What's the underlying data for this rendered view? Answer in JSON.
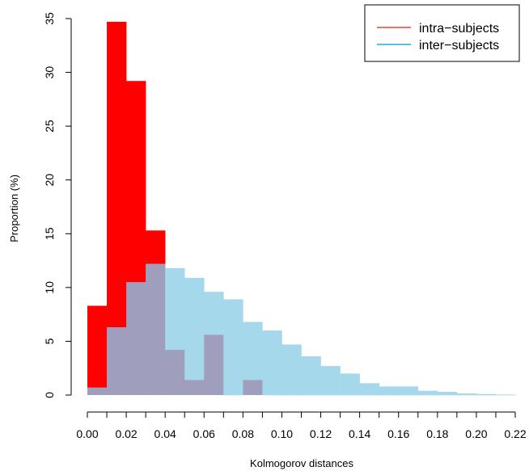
{
  "chart_data": {
    "type": "histogram",
    "xlabel": "Kolmogorov distances",
    "ylabel": "Proportion (%)",
    "xlim": [
      0.0,
      0.22
    ],
    "ylim": [
      0,
      35
    ],
    "grid": false,
    "legend_position": "top-right",
    "bin_edges": [
      0.0,
      0.01,
      0.02,
      0.03,
      0.04,
      0.05,
      0.06,
      0.07,
      0.08,
      0.09,
      0.1,
      0.11,
      0.12,
      0.13,
      0.14,
      0.15,
      0.16,
      0.17,
      0.18,
      0.19,
      0.2,
      0.21,
      0.22
    ],
    "x_ticks": [
      "0.00",
      "0.02",
      "0.04",
      "0.06",
      "0.08",
      "0.10",
      "0.12",
      "0.14",
      "0.16",
      "0.18",
      "0.20",
      "0.22"
    ],
    "y_ticks": [
      "0",
      "5",
      "10",
      "15",
      "20",
      "25",
      "30",
      "35"
    ],
    "overlap_color": "#9f9fbd",
    "series": [
      {
        "name": "intra−subjects",
        "color": "#ff0000",
        "legend_line_color": "#ff6b6b",
        "values": [
          8.3,
          34.7,
          29.2,
          15.3,
          4.2,
          1.4,
          5.6,
          0.0,
          1.4,
          0,
          0,
          0,
          0,
          0,
          0,
          0,
          0,
          0,
          0,
          0,
          0,
          0
        ]
      },
      {
        "name": "inter−subjects",
        "color": "#a6d8ec",
        "legend_line_color": "#5bc0de",
        "values": [
          0.7,
          6.3,
          10.5,
          12.2,
          11.8,
          10.9,
          9.6,
          8.9,
          6.8,
          6.0,
          4.7,
          3.6,
          2.7,
          2.0,
          1.1,
          0.8,
          0.8,
          0.4,
          0.3,
          0.15,
          0.1,
          0.05
        ]
      }
    ]
  }
}
